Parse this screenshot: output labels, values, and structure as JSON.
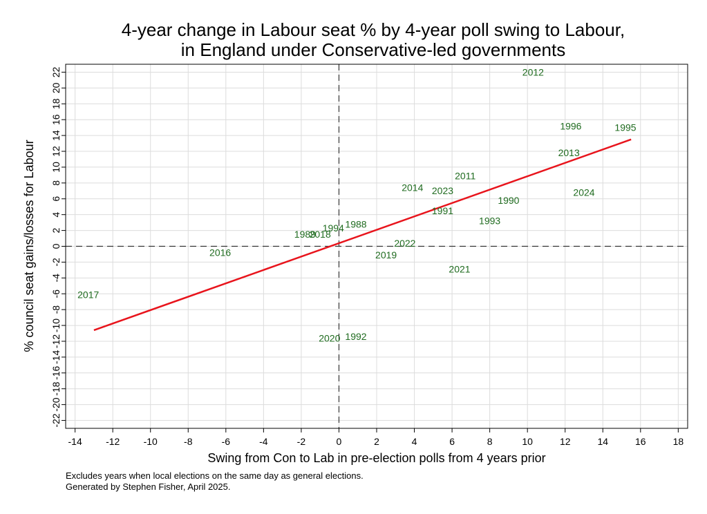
{
  "chart_data": {
    "type": "scatter",
    "title_lines": [
      "4-year change in Labour seat % by 4-year poll swing to Labour,",
      "in England under Conservative-led governments"
    ],
    "xlabel": "Swing from Con to Lab in pre-election polls from 4 years prior",
    "ylabel": "% council seat gains/losses for Labour",
    "xlim": [
      -14.5,
      18.5
    ],
    "ylim": [
      -23,
      23
    ],
    "x_ticks": [
      -14,
      -12,
      -10,
      -8,
      -6,
      -4,
      -2,
      0,
      2,
      4,
      6,
      8,
      10,
      12,
      14,
      16,
      18
    ],
    "y_ticks": [
      -22,
      -20,
      -18,
      -16,
      -14,
      -12,
      -10,
      -8,
      -6,
      -4,
      -2,
      0,
      2,
      4,
      6,
      8,
      10,
      12,
      14,
      16,
      18,
      20,
      22
    ],
    "grid": true,
    "points": [
      {
        "label": "2012",
        "x": 10.3,
        "y": 22.0
      },
      {
        "label": "1996",
        "x": 12.3,
        "y": 15.2
      },
      {
        "label": "1995",
        "x": 15.2,
        "y": 15.0
      },
      {
        "label": "2013",
        "x": 12.2,
        "y": 11.8
      },
      {
        "label": "2011",
        "x": 6.7,
        "y": 8.9
      },
      {
        "label": "2014",
        "x": 3.9,
        "y": 7.4
      },
      {
        "label": "2023",
        "x": 5.5,
        "y": 7.0
      },
      {
        "label": "2024",
        "x": 13.0,
        "y": 6.8
      },
      {
        "label": "1990",
        "x": 9.0,
        "y": 5.8
      },
      {
        "label": "1991",
        "x": 5.5,
        "y": 4.5
      },
      {
        "label": "1993",
        "x": 8.0,
        "y": 3.2
      },
      {
        "label": "1988",
        "x": 0.9,
        "y": 2.8
      },
      {
        "label": "1994",
        "x": -0.3,
        "y": 2.3
      },
      {
        "label": "1989",
        "x": -1.8,
        "y": 1.5
      },
      {
        "label": "2018",
        "x": -1.0,
        "y": 1.5
      },
      {
        "label": "2022",
        "x": 3.5,
        "y": 0.4
      },
      {
        "label": "2016",
        "x": -6.3,
        "y": -0.8
      },
      {
        "label": "2019",
        "x": 2.5,
        "y": -1.1
      },
      {
        "label": "2021",
        "x": 6.4,
        "y": -2.9
      },
      {
        "label": "2017",
        "x": -13.3,
        "y": -6.1
      },
      {
        "label": "1992",
        "x": 0.9,
        "y": -11.4
      },
      {
        "label": "2020",
        "x": -0.5,
        "y": -11.6
      }
    ],
    "fit_line": {
      "x": [
        -13.0,
        15.5
      ],
      "y": [
        -10.6,
        13.5
      ],
      "color": "#e8141c"
    },
    "reference_lines": {
      "x": 0,
      "y": 0,
      "style": "dashed"
    },
    "colors": {
      "points": "#1f6b1f",
      "fit": "#e8141c",
      "grid": "#dcdcdc"
    }
  },
  "notes": [
    "Excludes years when local elections on the same day as general elections.",
    "Generated by Stephen Fisher, April 2025."
  ]
}
